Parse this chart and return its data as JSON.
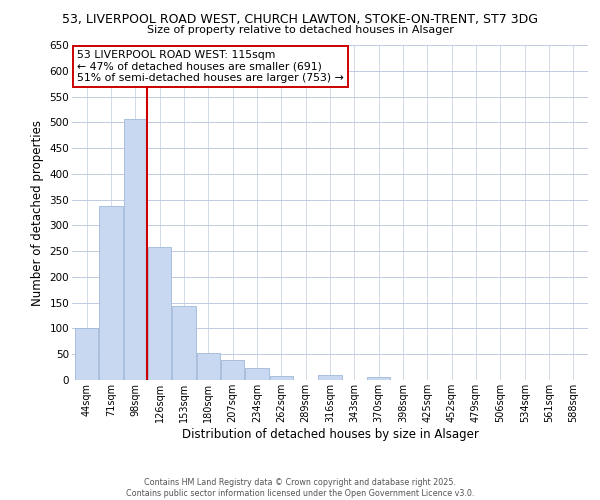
{
  "title": "53, LIVERPOOL ROAD WEST, CHURCH LAWTON, STOKE-ON-TRENT, ST7 3DG",
  "subtitle": "Size of property relative to detached houses in Alsager",
  "xlabel": "Distribution of detached houses by size in Alsager",
  "ylabel": "Number of detached properties",
  "bar_color": "#c8d8f0",
  "bar_edge_color": "#a0b8d8",
  "categories": [
    "44sqm",
    "71sqm",
    "98sqm",
    "126sqm",
    "153sqm",
    "180sqm",
    "207sqm",
    "234sqm",
    "262sqm",
    "289sqm",
    "316sqm",
    "343sqm",
    "370sqm",
    "398sqm",
    "425sqm",
    "452sqm",
    "479sqm",
    "506sqm",
    "534sqm",
    "561sqm",
    "588sqm"
  ],
  "values": [
    100,
    338,
    507,
    258,
    143,
    53,
    38,
    24,
    7,
    0,
    10,
    0,
    5,
    0,
    0,
    0,
    0,
    0,
    0,
    0,
    0
  ],
  "ylim": [
    0,
    650
  ],
  "yticks": [
    0,
    50,
    100,
    150,
    200,
    250,
    300,
    350,
    400,
    450,
    500,
    550,
    600,
    650
  ],
  "vline_x": 2.5,
  "vline_color": "#cc0000",
  "annotation_title": "53 LIVERPOOL ROAD WEST: 115sqm",
  "annotation_line1": "← 47% of detached houses are smaller (691)",
  "annotation_line2": "51% of semi-detached houses are larger (753) →",
  "annotation_box_color": "#ffffff",
  "annotation_box_edge": "#cc0000",
  "footer1": "Contains HM Land Registry data © Crown copyright and database right 2025.",
  "footer2": "Contains public sector information licensed under the Open Government Licence v3.0.",
  "background_color": "#ffffff",
  "grid_color": "#c0cce0"
}
